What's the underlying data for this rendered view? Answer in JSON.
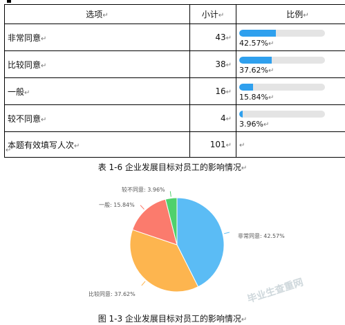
{
  "table": {
    "headers": [
      "选项",
      "小计",
      "比例"
    ],
    "rows": [
      {
        "label": "非常同意",
        "count": "43",
        "pct_text": "42.57%",
        "fraction": 0.4257
      },
      {
        "label": "比较同意",
        "count": "38",
        "pct_text": "37.62%",
        "fraction": 0.3762
      },
      {
        "label": "一般",
        "count": "16",
        "pct_text": "15.84%",
        "fraction": 0.1584
      },
      {
        "label": "较不同意",
        "count": "4",
        "pct_text": "3.96%",
        "fraction": 0.0396
      }
    ],
    "total_label": "本题有效填写人次",
    "total_count": "101"
  },
  "table_caption": "表 1-6  企业发展目标对员工的影响情况",
  "figure_caption": "图 1-3  企业发展目标对员工的影响情况",
  "watermark": "毕业生查重网",
  "chart_data": {
    "type": "pie",
    "labels": [
      "非常同意",
      "比较同意",
      "一般",
      "较不同意"
    ],
    "values": [
      42.57,
      37.62,
      15.84,
      3.96
    ],
    "label_texts": [
      "非常同意: 42.57%",
      "比较同意: 37.62%",
      "一般: 15.84%",
      "较不同意: 3.96%"
    ],
    "colors": [
      "#5bbcf5",
      "#fdb54f",
      "#fb7b6d",
      "#4fd16c"
    ]
  }
}
